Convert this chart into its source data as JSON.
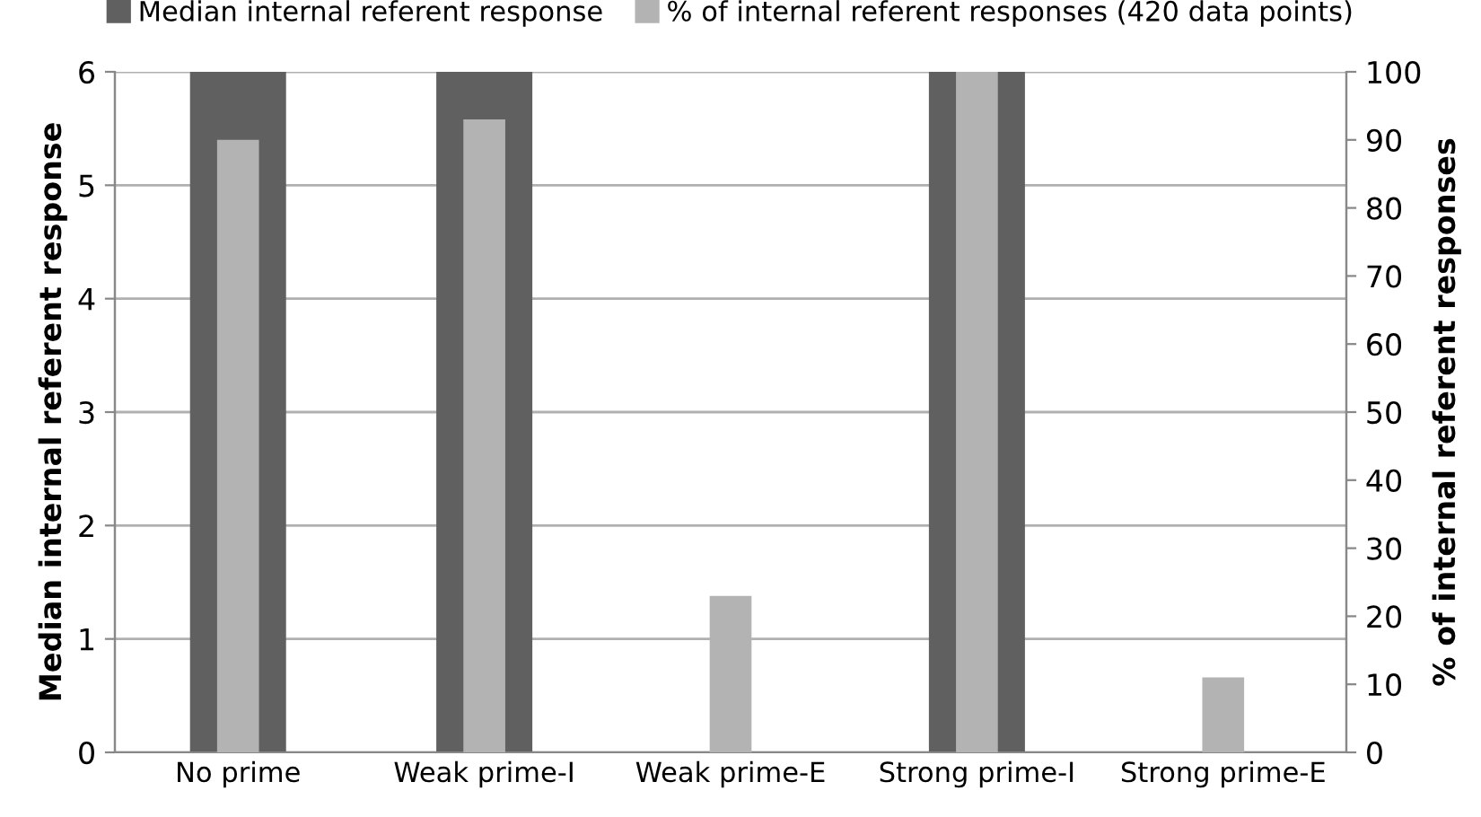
{
  "chart_data": {
    "type": "bar",
    "categories": [
      "No prime",
      "Weak prime-I",
      "Weak prime-E",
      "Strong prime-I",
      "Strong prime-E"
    ],
    "ylabel": "Median internal referent response",
    "y2label": "% of internal referent responses",
    "series": [
      {
        "name": "Median internal referent response",
        "color": "#606060",
        "values": [
          6,
          6,
          0,
          6,
          0
        ]
      },
      {
        "name": "% of internal referent responses (420 data points)",
        "color": "#b3b3b3",
        "values": [
          90,
          93,
          23,
          100,
          11
        ],
        "axis": "y2"
      }
    ],
    "ylim": [
      0,
      6
    ],
    "yticks": [
      0,
      1,
      2,
      3,
      4,
      5,
      6
    ],
    "y2lim": [
      0,
      100
    ],
    "y2ticks": [
      0,
      10,
      20,
      30,
      40,
      50,
      60,
      70,
      80,
      90,
      100
    ],
    "grid": "y",
    "legend": "top"
  }
}
